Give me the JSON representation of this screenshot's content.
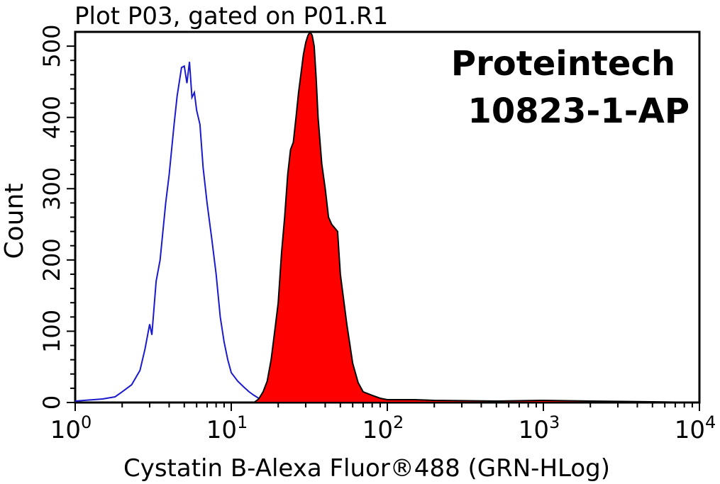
{
  "chart_data": {
    "type": "area",
    "title": "Plot P03, gated on P01.R1",
    "xlabel": "Cystatin B-Alexa Fluor®488 (GRN-HLog)",
    "ylabel": "Count",
    "x_scale": "log10",
    "xlim": [
      1,
      10000
    ],
    "ylim": [
      0,
      520
    ],
    "x_ticks": [
      {
        "base": "10",
        "exp": "0"
      },
      {
        "base": "10",
        "exp": "1"
      },
      {
        "base": "10",
        "exp": "2"
      },
      {
        "base": "10",
        "exp": "3"
      },
      {
        "base": "10",
        "exp": "4"
      }
    ],
    "y_ticks": [
      "0",
      "100",
      "200",
      "300",
      "400",
      "500"
    ],
    "grid": false,
    "series": [
      {
        "name": "",
        "style": "outline",
        "color": "#1a1acc",
        "x": [
          1.0,
          1.5,
          1.8,
          2.0,
          2.3,
          2.6,
          2.8,
          3.0,
          3.1,
          3.3,
          3.5,
          3.8,
          4.0,
          4.3,
          4.5,
          4.8,
          5.0,
          5.2,
          5.4,
          5.6,
          5.8,
          6.0,
          6.3,
          6.6,
          7.0,
          7.5,
          8.0,
          8.5,
          9.0,
          9.5,
          10.0,
          11.0,
          12.0,
          13.0,
          14.0,
          15.0,
          16.0
        ],
        "y": [
          2,
          5,
          8,
          15,
          25,
          45,
          75,
          110,
          95,
          170,
          200,
          280,
          320,
          390,
          430,
          470,
          472,
          448,
          478,
          428,
          435,
          410,
          390,
          330,
          280,
          230,
          180,
          120,
          85,
          60,
          42,
          30,
          22,
          15,
          10,
          6,
          3
        ]
      },
      {
        "name": "",
        "style": "filled",
        "color": "#ff0000",
        "x": [
          14,
          15,
          16,
          17,
          18,
          19,
          20,
          21,
          22,
          23,
          24,
          25,
          26,
          27,
          28,
          29,
          30,
          31,
          32,
          33,
          34,
          35,
          36,
          38,
          40,
          42,
          44,
          46,
          48,
          50,
          55,
          60,
          65,
          70,
          80,
          90,
          100,
          150,
          200,
          500,
          1000,
          2000,
          5000,
          10000
        ],
        "y": [
          0,
          5,
          15,
          30,
          60,
          100,
          140,
          210,
          260,
          320,
          355,
          365,
          400,
          435,
          462,
          488,
          505,
          515,
          520,
          515,
          500,
          455,
          400,
          335,
          300,
          260,
          250,
          245,
          240,
          180,
          110,
          55,
          28,
          15,
          10,
          6,
          4,
          4,
          3,
          2,
          3,
          2,
          1,
          0
        ]
      }
    ],
    "annotations": [
      "Proteintech",
      "10823-1-AP"
    ]
  }
}
